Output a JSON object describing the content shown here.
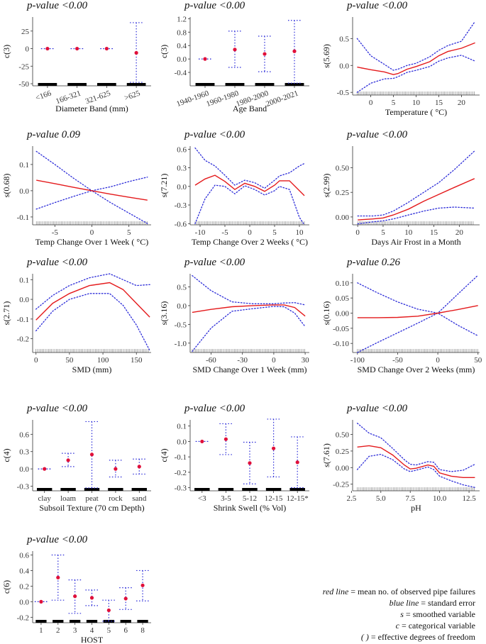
{
  "colors": {
    "mean": "#e41a1c",
    "se": "#2b2bd8",
    "point": "#e0103a",
    "axis": "#333333",
    "rug": "#000000"
  },
  "chart_data": [
    {
      "id": "diameter",
      "type": "categorical",
      "title": "p-value <0.00",
      "ylabel": "c(3)",
      "xlabel": "Diameter Band (mm)",
      "categories": [
        "<166",
        "166-321",
        "321-625",
        ">625"
      ],
      "values": [
        0,
        0,
        0,
        -6
      ],
      "lower": [
        0,
        0,
        0,
        -48
      ],
      "upper": [
        0,
        0,
        0,
        37
      ],
      "ylim": [
        -53,
        45
      ],
      "yticks": [
        -50,
        -25,
        0,
        25
      ],
      "tick_labels": [
        "-50",
        "-25",
        "0",
        "25"
      ],
      "rotate": true
    },
    {
      "id": "age",
      "type": "categorical",
      "title": "p-value <0.00",
      "ylabel": "c(3)",
      "xlabel": "Age Band",
      "categories": [
        "1940-1960",
        "1960-1980",
        "1980-2000",
        "2000-2021"
      ],
      "values": [
        0,
        0.28,
        0.15,
        0.23
      ],
      "lower": [
        0,
        -0.25,
        -0.38,
        -0.72
      ],
      "upper": [
        0,
        0.83,
        0.68,
        1.15
      ],
      "ylim": [
        -0.8,
        1.25
      ],
      "yticks": [
        -0.4,
        0,
        0.4,
        0.8,
        1.2
      ],
      "tick_labels": [
        "-0.4",
        "0.0",
        "0.4",
        "0.8",
        "1.2"
      ],
      "rotate": true
    },
    {
      "id": "temperature",
      "type": "smooth",
      "title": "p-value <0.00",
      "ylabel": "s(5.69)",
      "xlabel": "Temperature ( °C)",
      "xlim": [
        -4,
        24
      ],
      "ylim": [
        -0.55,
        0.9
      ],
      "xticks": [
        0,
        5,
        10,
        15,
        20
      ],
      "xtick_labels": [
        "0",
        "5",
        "10",
        "15",
        "20"
      ],
      "yticks": [
        -0.5,
        0,
        0.5
      ],
      "tick_labels": [
        "-0.5",
        "0.0",
        "0.5"
      ],
      "x": [
        -3,
        0,
        3,
        5,
        6,
        8,
        10,
        13,
        15,
        17,
        20,
        23
      ],
      "y": [
        -0.03,
        -0.08,
        -0.12,
        -0.17,
        -0.15,
        -0.07,
        -0.02,
        0.07,
        0.18,
        0.26,
        0.32,
        0.42
      ],
      "lower": [
        -0.5,
        -0.33,
        -0.25,
        -0.24,
        -0.21,
        -0.13,
        -0.09,
        -0.02,
        0.08,
        0.14,
        0.19,
        0.08
      ],
      "upper": [
        0.5,
        0.18,
        0.02,
        -0.09,
        -0.07,
        0,
        0.04,
        0.16,
        0.28,
        0.37,
        0.45,
        0.82
      ],
      "rug": [
        -3,
        23
      ]
    },
    {
      "id": "tempchange1",
      "type": "smooth",
      "title": "p-value 0.09",
      "ylabel": "s(0.68)",
      "xlabel": "Temp Change Over 1 Week ( °C)",
      "xlim": [
        -8,
        8
      ],
      "ylim": [
        -0.13,
        0.17
      ],
      "xticks": [
        -5,
        0,
        5
      ],
      "xtick_labels": [
        "-5",
        "0",
        "5"
      ],
      "yticks": [
        -0.1,
        0,
        0.1
      ],
      "tick_labels": [
        "-0.1",
        "0.0",
        "0.1"
      ],
      "x": [
        -7.5,
        -5,
        -2.5,
        0,
        2.5,
        5,
        7.5
      ],
      "y": [
        0.04,
        0.027,
        0.013,
        0,
        -0.013,
        -0.025,
        -0.036
      ],
      "lower": [
        -0.07,
        -0.045,
        -0.022,
        0,
        -0.045,
        -0.085,
        -0.125
      ],
      "upper": [
        0.15,
        0.1,
        0.048,
        0,
        0.015,
        0.035,
        0.052
      ],
      "rug": [
        -7.5,
        7.5
      ]
    },
    {
      "id": "tempchange2",
      "type": "smooth",
      "title": "p-value <0.00",
      "ylabel": "s(7.21)",
      "xlabel": "Temp Change Over 2 Weeks ( °C)",
      "xlim": [
        -12,
        12
      ],
      "ylim": [
        -0.62,
        0.65
      ],
      "xticks": [
        -10,
        -5,
        0,
        5,
        10
      ],
      "xtick_labels": [
        "-10",
        "-5",
        "0",
        "5",
        "10"
      ],
      "yticks": [
        -0.6,
        -0.3,
        0,
        0.3,
        0.6
      ],
      "tick_labels": [
        "-0.6",
        "-0.3",
        "0.0",
        "0.3",
        "0.6"
      ],
      "x": [
        -11,
        -9,
        -7,
        -5,
        -3,
        -1,
        1,
        3,
        5,
        6,
        8,
        10,
        11
      ],
      "y": [
        0.02,
        0.12,
        0.18,
        0.08,
        -0.05,
        0.05,
        0,
        -0.08,
        0.02,
        0.09,
        0.09,
        -0.07,
        -0.15
      ],
      "lower": [
        -0.6,
        -0.2,
        0.02,
        0,
        -0.12,
        0.01,
        -0.05,
        -0.14,
        -0.07,
        0,
        -0.05,
        -0.5,
        -0.62
      ],
      "upper": [
        0.62,
        0.42,
        0.33,
        0.18,
        0.02,
        0.1,
        0.06,
        -0.03,
        0.1,
        0.17,
        0.22,
        0.33,
        0.37
      ],
      "rug": [
        -11,
        11
      ]
    },
    {
      "id": "airfrost",
      "type": "smooth",
      "title": "p-value <0.00",
      "ylabel": "s(2.99)",
      "xlabel": "Days Air Frost in a Month",
      "xlim": [
        -1,
        24
      ],
      "ylim": [
        -0.08,
        0.72
      ],
      "xticks": [
        0,
        5,
        10,
        15,
        20
      ],
      "xtick_labels": [
        "0",
        "5",
        "10",
        "15",
        "20"
      ],
      "yticks": [
        0,
        0.25,
        0.5
      ],
      "tick_labels": [
        "0.00",
        "0.25",
        "0.50"
      ],
      "x": [
        0,
        3,
        5,
        7,
        10,
        13,
        16,
        19,
        23
      ],
      "y": [
        -0.03,
        -0.02,
        -0.01,
        0.02,
        0.08,
        0.16,
        0.23,
        0.3,
        0.39
      ],
      "lower": [
        -0.07,
        -0.05,
        -0.04,
        -0.02,
        0.02,
        0.06,
        0.09,
        0.1,
        0.09
      ],
      "upper": [
        0.01,
        0.01,
        0.02,
        0.06,
        0.15,
        0.25,
        0.35,
        0.48,
        0.67
      ],
      "rug": [
        0,
        23
      ]
    },
    {
      "id": "smd",
      "type": "smooth",
      "title": "p-value <0.00",
      "ylabel": "s(2.71)",
      "xlabel": "SMD (mm)",
      "xlim": [
        -5,
        172
      ],
      "ylim": [
        -0.27,
        0.13
      ],
      "xticks": [
        0,
        50,
        100,
        150
      ],
      "xtick_labels": [
        "0",
        "50",
        "100",
        "150"
      ],
      "yticks": [
        -0.2,
        -0.1,
        0,
        0.1
      ],
      "tick_labels": [
        "-0.2",
        "-0.1",
        "0.0",
        "0.1"
      ],
      "x": [
        0,
        25,
        50,
        80,
        110,
        130,
        150,
        170
      ],
      "y": [
        -0.105,
        -0.02,
        0.03,
        0.07,
        0.085,
        0.05,
        -0.02,
        -0.09
      ],
      "lower": [
        -0.16,
        -0.06,
        0,
        0.03,
        0.03,
        -0.03,
        -0.13,
        -0.26
      ],
      "upper": [
        -0.05,
        0.02,
        0.07,
        0.11,
        0.13,
        0.1,
        0.07,
        0.075
      ],
      "rug": [
        0,
        170
      ]
    },
    {
      "id": "smdchange1",
      "type": "smooth",
      "title": "p-value <0.00",
      "ylabel": "s(3.16)",
      "xlabel": "SMD Change Over 1 Week (mm)",
      "xlim": [
        -80,
        34
      ],
      "ylim": [
        -1.25,
        0.85
      ],
      "xticks": [
        -60,
        -30,
        0,
        30
      ],
      "xtick_labels": [
        "-60",
        "-30",
        "0",
        "30"
      ],
      "yticks": [
        -1,
        -0.5,
        0,
        0.5
      ],
      "tick_labels": [
        "-1.0",
        "-0.5",
        "0.0",
        "0.5"
      ],
      "x": [
        -78,
        -60,
        -40,
        -20,
        0,
        10,
        20,
        30
      ],
      "y": [
        -0.18,
        -0.1,
        -0.03,
        0,
        0.02,
        0.02,
        -0.05,
        -0.28
      ],
      "lower": [
        -1.22,
        -0.6,
        -0.15,
        -0.08,
        -0.02,
        -0.03,
        -0.2,
        -0.56
      ],
      "upper": [
        0.8,
        0.4,
        0.1,
        0.05,
        0.05,
        0.07,
        0.08,
        0.02
      ],
      "rug": [
        -78,
        30
      ]
    },
    {
      "id": "smdchange2",
      "type": "smooth",
      "title": "p-value 0.26",
      "ylabel": "s(0.16)",
      "xlabel": "SMD Change Over 2 Weeks (mm)",
      "xlim": [
        -106,
        52
      ],
      "ylim": [
        -0.13,
        0.13
      ],
      "xticks": [
        -100,
        -50,
        0,
        50
      ],
      "xtick_labels": [
        "-100",
        "-50",
        "0",
        "50"
      ],
      "yticks": [
        -0.1,
        -0.05,
        0,
        0.05,
        0.1
      ],
      "tick_labels": [
        "-0.10",
        "-0.05",
        "0.00",
        "0.05",
        "0.10"
      ],
      "x": [
        -100,
        -75,
        -50,
        -25,
        0,
        25,
        50
      ],
      "y": [
        -0.015,
        -0.015,
        -0.014,
        -0.01,
        0,
        0.012,
        0.025
      ],
      "lower": [
        -0.13,
        -0.097,
        -0.065,
        -0.033,
        0,
        -0.04,
        -0.075
      ],
      "upper": [
        0.1,
        0.067,
        0.037,
        0.013,
        0,
        0.063,
        0.125
      ],
      "rug": [
        -100,
        50
      ]
    },
    {
      "id": "subsoil",
      "type": "categorical",
      "title": "p-value <0.00",
      "ylabel": "c(4)",
      "xlabel": "Subsoil Texture (70 cm Depth)",
      "categories": [
        "clay",
        "loam",
        "peat",
        "rock",
        "sand"
      ],
      "values": [
        0,
        0.15,
        0.25,
        0,
        0.04
      ],
      "lower": [
        0,
        0.04,
        -0.33,
        -0.14,
        -0.09
      ],
      "upper": [
        0,
        0.27,
        0.82,
        0.15,
        0.17
      ],
      "ylim": [
        -0.38,
        0.85
      ],
      "yticks": [
        -0.3,
        0,
        0.3,
        0.6
      ],
      "tick_labels": [
        "-0.3",
        "0.0",
        "0.3",
        "0.6"
      ],
      "rotate": false
    },
    {
      "id": "shrinkswell",
      "type": "categorical",
      "title": "p-value <0.00",
      "ylabel": "c(4)",
      "xlabel": "Shrink Swell (% Vol)",
      "categories": [
        "<3",
        "3-5",
        "5-12",
        "12-15",
        "12-15*"
      ],
      "values": [
        0,
        0.015,
        -0.14,
        -0.045,
        -0.135
      ],
      "lower": [
        0,
        -0.085,
        -0.275,
        -0.23,
        -0.3
      ],
      "upper": [
        0,
        0.115,
        -0.005,
        0.145,
        0.03
      ],
      "ylim": [
        -0.32,
        0.14
      ],
      "yticks": [
        -0.3,
        -0.2,
        -0.1,
        0,
        0.1
      ],
      "tick_labels": [
        "-0.3",
        "-0.2",
        "-0.1",
        "0.0",
        "0.1"
      ],
      "rotate": false
    },
    {
      "id": "ph",
      "type": "smooth",
      "title": "p-value <0.00",
      "ylabel": "s(7.61)",
      "xlabel": "pH",
      "xlim": [
        2.6,
        13.4
      ],
      "ylim": [
        -0.35,
        0.72
      ],
      "xticks": [
        2.5,
        5,
        7.5,
        10,
        12.5
      ],
      "xtick_labels": [
        "2.5",
        "5.0",
        "7.5",
        "10.0",
        "12.5"
      ],
      "yticks": [
        -0.25,
        0,
        0.25,
        0.5
      ],
      "tick_labels": [
        "-0.25",
        "0.00",
        "0.25",
        "0.50"
      ],
      "x": [
        3,
        4,
        5,
        6,
        7,
        7.5,
        8,
        9,
        9.5,
        10,
        11,
        12,
        13
      ],
      "y": [
        0.31,
        0.33,
        0.3,
        0.19,
        0.04,
        -0.02,
        -0.01,
        0.04,
        0.02,
        -0.08,
        -0.13,
        -0.15,
        -0.15
      ],
      "lower": [
        -0.03,
        0.17,
        0.2,
        0.12,
        -0.02,
        -0.06,
        -0.04,
        0.01,
        -0.03,
        -0.13,
        -0.2,
        -0.26,
        -0.3
      ],
      "upper": [
        0.67,
        0.52,
        0.45,
        0.29,
        0.12,
        0.05,
        0.04,
        0.09,
        0.08,
        -0.03,
        -0.06,
        -0.04,
        0.05
      ],
      "rug": [
        3,
        13
      ]
    },
    {
      "id": "host",
      "type": "categorical",
      "title": "p-value <0.00",
      "ylabel": "c(6)",
      "xlabel": "HOST",
      "categories": [
        "1",
        "2",
        "3",
        "4",
        "5",
        "6",
        "8"
      ],
      "values": [
        0,
        0.31,
        0.07,
        0.05,
        -0.11,
        0.04,
        0.21
      ],
      "lower": [
        0,
        0.02,
        -0.15,
        -0.05,
        -0.25,
        -0.1,
        0.01
      ],
      "upper": [
        0,
        0.6,
        0.28,
        0.15,
        0.02,
        0.18,
        0.4
      ],
      "ylim": [
        -0.27,
        0.65
      ],
      "yticks": [
        -0.2,
        0,
        0.2,
        0.4,
        0.6
      ],
      "tick_labels": [
        "-0.2",
        "0.0",
        "0.2",
        "0.4",
        "0.6"
      ],
      "rotate": false
    }
  ],
  "legend": [
    {
      "term": "red line",
      "text": " = mean no. of observed pipe failures"
    },
    {
      "term": "blue line",
      "text": " = standard error"
    },
    {
      "term": "s",
      "text": " = smoothed variable"
    },
    {
      "term": "c",
      "text": " = categorical variable"
    },
    {
      "term": "( )",
      "text": " = effective degrees of freedom"
    }
  ]
}
